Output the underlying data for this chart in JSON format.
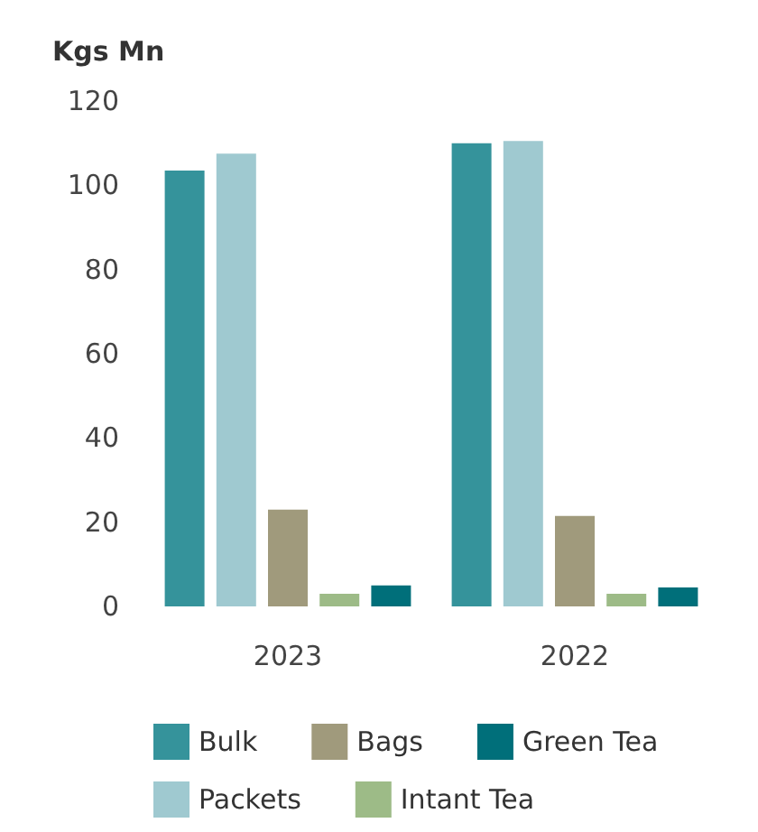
{
  "chart_data": {
    "type": "bar",
    "ylabel": "Kgs Mn",
    "categories": [
      "2023",
      "2022"
    ],
    "series": [
      {
        "name": "Bulk",
        "color": "#35939b",
        "values": [
          103.5,
          110
        ]
      },
      {
        "name": "Packets",
        "color": "#9fc9d0",
        "values": [
          107.5,
          110.5
        ]
      },
      {
        "name": "Bags",
        "color": "#a09a7c",
        "values": [
          23,
          21.5
        ]
      },
      {
        "name": "Intant Tea",
        "color": "#9dbb87",
        "values": [
          3,
          3
        ]
      },
      {
        "name": "Green Tea",
        "color": "#006f7a",
        "values": [
          5,
          4.5
        ]
      }
    ],
    "ylim": [
      0,
      120
    ],
    "yticks": [
      0,
      20,
      40,
      60,
      80,
      100,
      120
    ],
    "grid": false,
    "legend": "bottom"
  }
}
